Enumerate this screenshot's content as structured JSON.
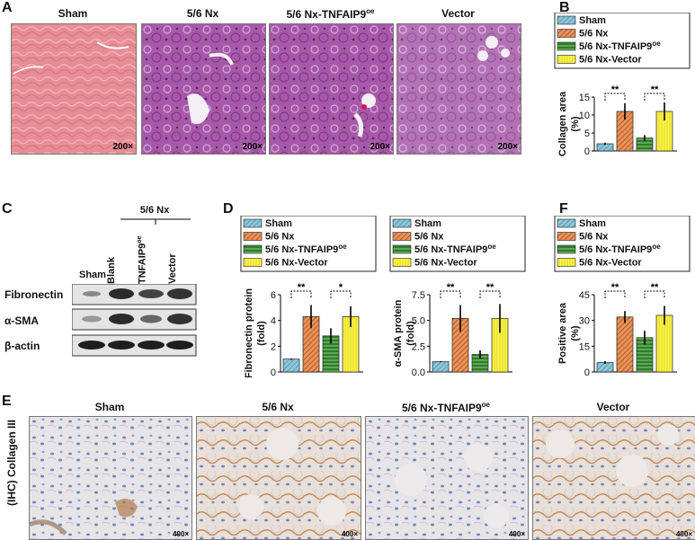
{
  "panel_letters": {
    "A": "A",
    "B": "B",
    "C": "C",
    "D": "D",
    "E": "E",
    "F": "F"
  },
  "panel_a": {
    "titles": [
      "Sham",
      "5/6 Nx",
      "5/6 Nx-TNFAIP9",
      "Vector"
    ],
    "superscript": "oe",
    "magnification": "200×",
    "colors": {
      "sham": "#e58a92",
      "nx": "#a65aa8",
      "tnf": "#b160a8",
      "vector": "#c27ab8"
    }
  },
  "legend": {
    "items": [
      {
        "label": "Sham",
        "color": "#7fbcd2",
        "pattern": "hatch-blue"
      },
      {
        "label": "5/6 Nx",
        "color": "#d9773a",
        "pattern": "hatch-orange"
      },
      {
        "label": "5/6 Nx-TNFAIP9",
        "sup": "oe",
        "color": "#2e7d2a",
        "pattern": "hatch-green"
      },
      {
        "label": "5/6 Nx-Vector",
        "color": "#f5f03a",
        "pattern": "hatch-yellow"
      }
    ]
  },
  "significance": {
    "double": "**",
    "single": "*"
  },
  "panel_c": {
    "group_label": "5/6 Nx",
    "lanes": [
      "Sham",
      "Blank",
      "TNFAIP9",
      "Vector"
    ],
    "lane_sup": "oe",
    "rows": [
      "Fibronectin",
      "α-SMA",
      "β-actin"
    ]
  },
  "panel_e": {
    "titles": [
      "Sham",
      "5/6 Nx",
      "5/6 Nx-TNFAIP9",
      "Vector"
    ],
    "superscript": "oe",
    "row_label": "(IHC) Collagen III",
    "magnification": "400×"
  },
  "chart_data": [
    {
      "id": "B",
      "type": "bar",
      "categories": [
        "Sham",
        "5/6 Nx",
        "5/6 Nx-TNFAIP9oe",
        "5/6 Nx-Vector"
      ],
      "values": [
        2.0,
        11.0,
        3.6,
        11.0
      ],
      "errors": [
        0.3,
        2.3,
        0.8,
        2.5
      ],
      "ylabel": "Collagen area\n(%)",
      "ylim": [
        0,
        15
      ],
      "yticks": [
        0,
        5,
        10,
        15
      ],
      "sig": [
        {
          "from": 0,
          "to": 1,
          "text": "**"
        },
        {
          "from": 2,
          "to": 3,
          "text": "**"
        }
      ]
    },
    {
      "id": "D1",
      "type": "bar",
      "categories": [
        "Sham",
        "5/6 Nx",
        "5/6 Nx-TNFAIP9oe",
        "5/6 Nx-Vector"
      ],
      "values": [
        1.0,
        4.3,
        2.8,
        4.3
      ],
      "errors": [
        0.05,
        0.9,
        0.6,
        0.8
      ],
      "ylabel": "Fibronectin protein\n(fold)",
      "ylim": [
        0,
        6
      ],
      "yticks": [
        0,
        2,
        4,
        6
      ],
      "sig": [
        {
          "from": 0,
          "to": 1,
          "text": "**"
        },
        {
          "from": 2,
          "to": 3,
          "text": "*"
        }
      ]
    },
    {
      "id": "D2",
      "type": "bar",
      "categories": [
        "Sham",
        "5/6 Nx",
        "5/6 Nx-TNFAIP9oe",
        "5/6 Nx-Vector"
      ],
      "values": [
        1.0,
        5.2,
        1.7,
        5.2
      ],
      "errors": [
        0.05,
        1.3,
        0.4,
        1.4
      ],
      "ylabel": "α-SMA protein\n(fold)",
      "ylim": [
        0,
        7.5
      ],
      "yticks": [
        0.0,
        2.5,
        5.0,
        7.5
      ],
      "tick_labels": [
        "0.0",
        "2.5",
        "5.0",
        "7.5"
      ],
      "sig": [
        {
          "from": 0,
          "to": 1,
          "text": "**"
        },
        {
          "from": 2,
          "to": 3,
          "text": "**"
        }
      ]
    },
    {
      "id": "F",
      "type": "bar",
      "categories": [
        "Sham",
        "5/6 Nx",
        "5/6 Nx-TNFAIP9oe",
        "5/6 Nx-Vector"
      ],
      "values": [
        5.5,
        32.0,
        20.0,
        33.0
      ],
      "errors": [
        0.8,
        3.5,
        4.0,
        5.5
      ],
      "ylabel": "Positive area\n(%)",
      "ylim": [
        0,
        45
      ],
      "yticks": [
        0,
        15,
        30,
        45
      ],
      "sig": [
        {
          "from": 0,
          "to": 1,
          "text": "**"
        },
        {
          "from": 2,
          "to": 3,
          "text": "**"
        }
      ]
    }
  ]
}
